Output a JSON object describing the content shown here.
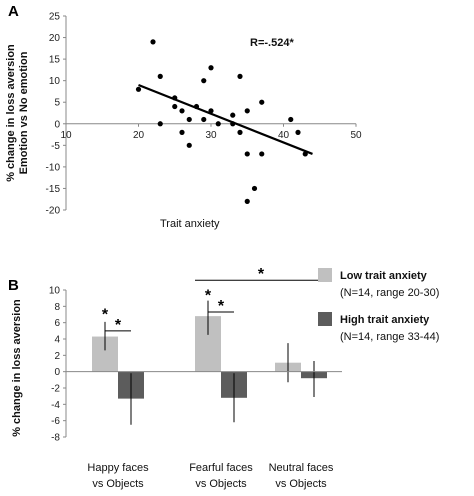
{
  "chart_data": [
    {
      "type": "scatter",
      "panel_label": "A",
      "xlabel": "Trait anxiety",
      "ylabel_lines": [
        "% change in loss aversion",
        "Emotion vs No emotion"
      ],
      "xlim": [
        10,
        50
      ],
      "ylim": [
        -20,
        25
      ],
      "xticks": [
        10,
        20,
        30,
        40,
        50
      ],
      "yticks": [
        25,
        20,
        15,
        10,
        5,
        0,
        -5,
        -10,
        -15,
        -20
      ],
      "annotation": "R=-.524*",
      "points": [
        {
          "x": 20,
          "y": 8
        },
        {
          "x": 22,
          "y": 19
        },
        {
          "x": 23,
          "y": 11
        },
        {
          "x": 23,
          "y": 0
        },
        {
          "x": 25,
          "y": 4
        },
        {
          "x": 25,
          "y": 6
        },
        {
          "x": 26,
          "y": 3
        },
        {
          "x": 26,
          "y": -2
        },
        {
          "x": 27,
          "y": 1
        },
        {
          "x": 27,
          "y": -5
        },
        {
          "x": 28,
          "y": 4
        },
        {
          "x": 29,
          "y": 1
        },
        {
          "x": 29,
          "y": 10
        },
        {
          "x": 30,
          "y": 13
        },
        {
          "x": 30,
          "y": 3
        },
        {
          "x": 31,
          "y": 0
        },
        {
          "x": 33,
          "y": 2
        },
        {
          "x": 33,
          "y": 0
        },
        {
          "x": 34,
          "y": 11
        },
        {
          "x": 34,
          "y": -2
        },
        {
          "x": 35,
          "y": 3
        },
        {
          "x": 35,
          "y": -7
        },
        {
          "x": 35,
          "y": -18
        },
        {
          "x": 36,
          "y": -15
        },
        {
          "x": 37,
          "y": 5
        },
        {
          "x": 37,
          "y": -7
        },
        {
          "x": 41,
          "y": 1
        },
        {
          "x": 42,
          "y": -2
        },
        {
          "x": 43,
          "y": -7
        }
      ],
      "trendline": {
        "x": [
          20,
          44
        ],
        "y": [
          9,
          -7
        ]
      }
    },
    {
      "type": "bar",
      "panel_label": "B",
      "ylabel": "% change in loss aversion",
      "ylim": [
        -8,
        10
      ],
      "yticks": [
        10,
        8,
        6,
        4,
        2,
        0,
        -2,
        -4,
        -6,
        -8
      ],
      "categories": [
        [
          "Happy faces",
          "vs Objects"
        ],
        [
          "Fearful faces",
          "vs Objects"
        ],
        [
          "Neutral faces",
          "vs Objects"
        ]
      ],
      "series": [
        {
          "name": "Low trait anxiety",
          "detail": "(N=14, range 20-30)",
          "color": "#c0c0c0",
          "values": [
            4.3,
            6.8,
            1.1
          ],
          "err_low": [
            2.6,
            4.5,
            -1.3
          ],
          "err_high": [
            6.1,
            8.7,
            3.5
          ]
        },
        {
          "name": "High trait anxiety",
          "detail": "(N=14, range 33-44)",
          "color": "#5c5c5c",
          "values": [
            -3.3,
            -3.2,
            -0.8
          ],
          "err_low": [
            -6.5,
            -6.2,
            -3.1
          ],
          "err_high": [
            -0.2,
            -0.2,
            1.3
          ]
        }
      ],
      "significance": [
        {
          "label": "*",
          "type": "point",
          "category": 0,
          "series": 0,
          "y": 6.9
        },
        {
          "label": "*",
          "type": "bracket",
          "from": [
            0,
            0
          ],
          "to": [
            0,
            1
          ],
          "y": 5.0
        },
        {
          "label": "*",
          "type": "point",
          "category": 1,
          "series": 0,
          "y": 9.2
        },
        {
          "label": "*",
          "type": "bracket",
          "from": [
            1,
            0
          ],
          "to": [
            1,
            1
          ],
          "y": 7.3
        },
        {
          "label": "*",
          "type": "line",
          "from": 1,
          "to": 2,
          "y": 11.2
        }
      ],
      "legend_position": "right"
    }
  ]
}
